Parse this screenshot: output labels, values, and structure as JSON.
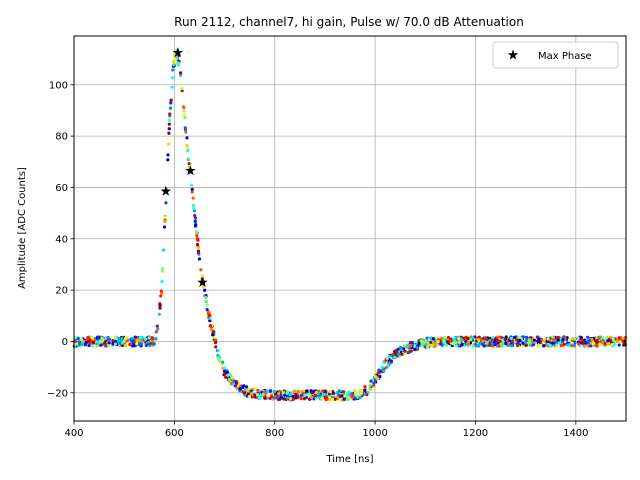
{
  "chart_data": {
    "type": "scatter",
    "title": "Run 2112, channel7, hi gain, Pulse w/ 70.0 dB Attenuation",
    "xlabel": "Time [ns]",
    "ylabel": "Amplitude [ADC Counts]",
    "xlim": [
      400,
      1500
    ],
    "ylim": [
      -31,
      119
    ],
    "x_ticks": [
      400,
      600,
      800,
      1000,
      1200,
      1400
    ],
    "y_ticks": [
      -20,
      0,
      20,
      40,
      60,
      80,
      100
    ],
    "grid": true,
    "legend_position": "top-right",
    "colormap": "jet",
    "pulse_shape": {
      "description_points": [
        [
          400,
          0
        ],
        [
          560,
          0
        ],
        [
          565,
          3
        ],
        [
          575,
          20
        ],
        [
          582,
          50
        ],
        [
          590,
          85
        ],
        [
          598,
          108
        ],
        [
          605,
          112
        ],
        [
          612,
          105
        ],
        [
          620,
          88
        ],
        [
          630,
          68
        ],
        [
          640,
          50
        ],
        [
          650,
          33
        ],
        [
          660,
          20
        ],
        [
          670,
          9
        ],
        [
          680,
          1
        ],
        [
          690,
          -6
        ],
        [
          700,
          -12
        ],
        [
          720,
          -17
        ],
        [
          750,
          -20
        ],
        [
          800,
          -21
        ],
        [
          900,
          -21
        ],
        [
          960,
          -21
        ],
        [
          985,
          -19
        ],
        [
          1000,
          -15
        ],
        [
          1020,
          -9
        ],
        [
          1040,
          -5
        ],
        [
          1060,
          -3
        ],
        [
          1080,
          -1.5
        ],
        [
          1100,
          -0.5
        ],
        [
          1150,
          0
        ],
        [
          1500,
          0
        ]
      ],
      "noise_amplitude": 1.8
    },
    "series": [
      {
        "name": "Max Phase",
        "marker": "star",
        "color": "#000000",
        "points": [
          {
            "x": 583,
            "y": 58.5
          },
          {
            "x": 607,
            "y": 112.5
          },
          {
            "x": 632,
            "y": 66.5
          },
          {
            "x": 656,
            "y": 23
          }
        ]
      }
    ]
  }
}
